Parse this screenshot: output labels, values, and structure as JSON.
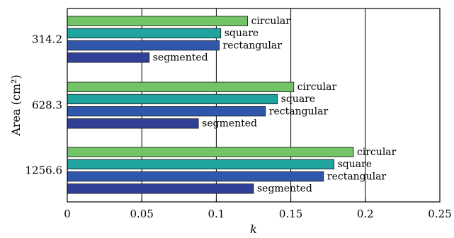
{
  "chart_data": {
    "type": "bar",
    "orientation": "horizontal",
    "title": "",
    "xlabel": "k",
    "ylabel": "Area (cm²)",
    "xlim": [
      0,
      0.25
    ],
    "xticks": [
      "0",
      "0.05",
      "0.1",
      "0.15",
      "0.2",
      "0.25"
    ],
    "grid": "vertical",
    "categories": [
      "314.2",
      "628.3",
      "1256.6"
    ],
    "series": [
      {
        "name": "circular",
        "color": "#72c466",
        "values": [
          0.121,
          0.152,
          0.192
        ]
      },
      {
        "name": "square",
        "color": "#1fa4a0",
        "values": [
          0.103,
          0.141,
          0.179
        ]
      },
      {
        "name": "rectangular",
        "color": "#2f58ad",
        "values": [
          0.102,
          0.133,
          0.172
        ]
      },
      {
        "name": "segmented",
        "color": "#323f97",
        "values": [
          0.055,
          0.088,
          0.125
        ]
      }
    ]
  }
}
